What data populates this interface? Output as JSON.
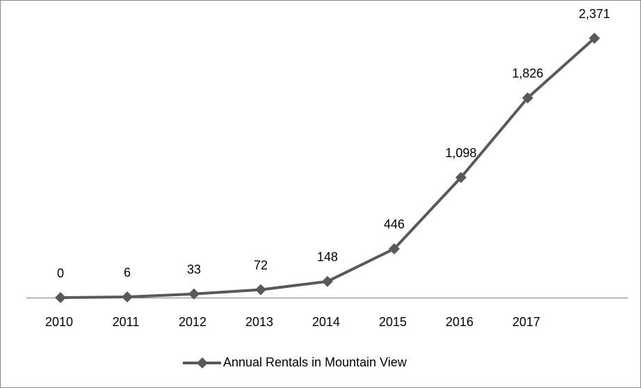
{
  "chart_data": {
    "type": "line",
    "categories": [
      "2010",
      "2011",
      "2012",
      "2013",
      "2014",
      "2015",
      "2016",
      "2017",
      null
    ],
    "series": [
      {
        "name": "Annual Rentals in Mountain View",
        "color": "#595959",
        "values": [
          0,
          6,
          33,
          72,
          148,
          446,
          1098,
          1826,
          2371
        ],
        "value_labels": [
          "0",
          "6",
          "33",
          "72",
          "148",
          "446",
          "1,098",
          "1,826",
          "2,371"
        ]
      }
    ],
    "legend": "bottom"
  }
}
